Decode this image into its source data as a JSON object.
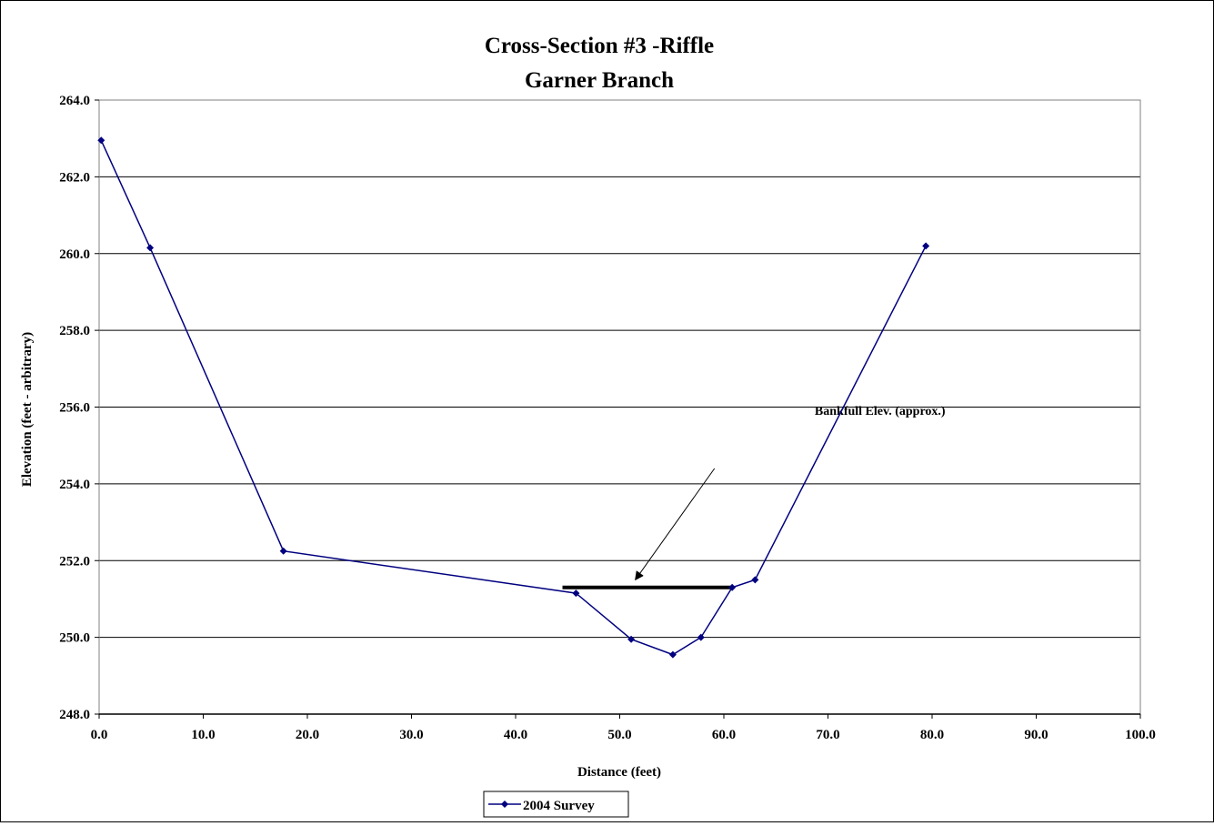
{
  "chart_data": {
    "type": "line",
    "title": "Cross-Section #3 -Riffle",
    "subtitle": "Garner Branch",
    "xlabel": "Distance (feet)",
    "ylabel": "Elevation (feet - arbitrary)",
    "xlim": [
      0,
      100
    ],
    "ylim": [
      248,
      264
    ],
    "x_ticks": [
      "0.0",
      "10.0",
      "20.0",
      "30.0",
      "40.0",
      "50.0",
      "60.0",
      "70.0",
      "80.0",
      "90.0",
      "100.0"
    ],
    "y_ticks": [
      "248.0",
      "250.0",
      "252.0",
      "254.0",
      "256.0",
      "258.0",
      "260.0",
      "262.0",
      "264.0"
    ],
    "grid": "horizontal",
    "legend_position": "bottom",
    "series": [
      {
        "name": "2004 Survey",
        "color": "#000080",
        "marker": "diamond",
        "points": [
          {
            "x": 0.2,
            "y": 262.95
          },
          {
            "x": 4.9,
            "y": 260.15
          },
          {
            "x": 17.7,
            "y": 252.25
          },
          {
            "x": 45.8,
            "y": 251.15
          },
          {
            "x": 51.1,
            "y": 249.95
          },
          {
            "x": 55.1,
            "y": 249.55
          },
          {
            "x": 57.8,
            "y": 250.0
          },
          {
            "x": 60.8,
            "y": 251.3
          },
          {
            "x": 63.0,
            "y": 251.5
          },
          {
            "x": 79.4,
            "y": 260.2
          }
        ]
      }
    ],
    "annotations": [
      {
        "type": "hline",
        "y": 251.3,
        "x_start": 44.5,
        "x_end": 60.8,
        "color": "#000000"
      },
      {
        "type": "text_arrow",
        "text": "Bankfull Elev. (approx.)",
        "text_x": 75.0,
        "text_y": 255.8,
        "arrow_from": {
          "x": 59.1,
          "y": 254.4
        },
        "arrow_to": {
          "x": 51.5,
          "y": 251.5
        }
      }
    ]
  }
}
